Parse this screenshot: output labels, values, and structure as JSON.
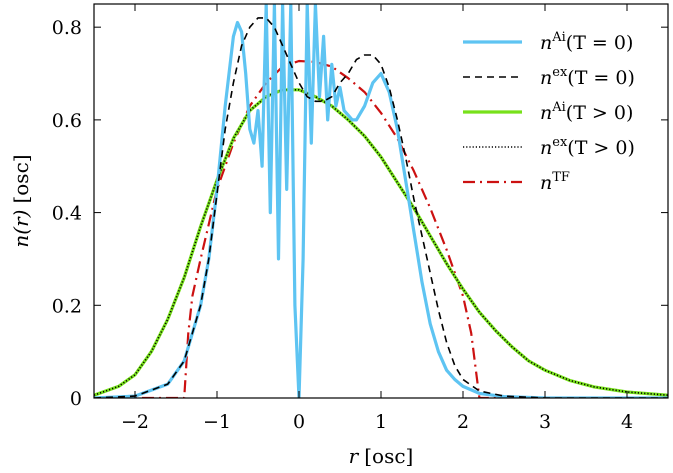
{
  "chart_data": {
    "type": "line",
    "title": "",
    "xlabel_var": "r",
    "xlabel_unit": "[osc]",
    "ylabel_var": "n(r)",
    "ylabel_unit": "[osc]",
    "xlim": [
      -2.5,
      4.5
    ],
    "ylim": [
      0,
      0.85
    ],
    "xticks": [
      -2,
      -1,
      0,
      1,
      2,
      3,
      4
    ],
    "xtick_labels": [
      "−2",
      "−1",
      "0",
      "1",
      "2",
      "3",
      "4"
    ],
    "yticks": [
      0,
      0.2,
      0.4,
      0.6,
      0.8
    ],
    "ytick_labels": [
      "0",
      "0.2",
      "0.4",
      "0.6",
      "0.8"
    ],
    "legend_position": "top-right",
    "series": [
      {
        "id": "ai_t0",
        "name": "n^Ai(T = 0)",
        "legend_base": "n",
        "legend_sup": "Ai",
        "legend_arg": "(T = 0)",
        "color": "#5ec4f2",
        "style": "solid",
        "x": [
          -2.5,
          -2.0,
          -1.6,
          -1.4,
          -1.2,
          -1.1,
          -1.0,
          -0.9,
          -0.8,
          -0.75,
          -0.7,
          -0.65,
          -0.6,
          -0.55,
          -0.5,
          -0.45,
          -0.4,
          -0.35,
          -0.3,
          -0.25,
          -0.2,
          -0.15,
          -0.1,
          -0.05,
          0.0,
          0.05,
          0.1,
          0.15,
          0.2,
          0.25,
          0.3,
          0.35,
          0.4,
          0.45,
          0.5,
          0.55,
          0.6,
          0.65,
          0.7,
          0.8,
          0.9,
          1.0,
          1.1,
          1.2,
          1.3,
          1.4,
          1.5,
          1.6,
          1.7,
          1.8,
          1.9,
          2.0,
          2.2,
          2.5,
          3.0,
          3.5,
          4.0,
          4.5
        ],
        "values": [
          0.0,
          0.004,
          0.03,
          0.08,
          0.2,
          0.3,
          0.45,
          0.63,
          0.78,
          0.81,
          0.79,
          0.7,
          0.58,
          0.55,
          0.62,
          0.5,
          0.85,
          0.4,
          0.85,
          0.3,
          0.85,
          0.45,
          0.85,
          0.2,
          0.0,
          0.3,
          0.85,
          0.55,
          0.85,
          0.65,
          0.78,
          0.6,
          0.72,
          0.63,
          0.67,
          0.62,
          0.61,
          0.6,
          0.6,
          0.63,
          0.68,
          0.7,
          0.66,
          0.58,
          0.47,
          0.36,
          0.25,
          0.16,
          0.1,
          0.06,
          0.04,
          0.025,
          0.01,
          0.003,
          0.0,
          0.0,
          0.0,
          0.0
        ]
      },
      {
        "id": "ex_t0",
        "name": "n^ex(T = 0)",
        "legend_base": "n",
        "legend_sup": "ex",
        "legend_arg": "(T = 0)",
        "color": "#000000",
        "style": "dashed",
        "x": [
          -2.5,
          -2.0,
          -1.6,
          -1.4,
          -1.2,
          -1.1,
          -1.0,
          -0.9,
          -0.8,
          -0.7,
          -0.6,
          -0.5,
          -0.4,
          -0.3,
          -0.2,
          -0.1,
          0.0,
          0.1,
          0.2,
          0.3,
          0.4,
          0.5,
          0.6,
          0.7,
          0.8,
          0.9,
          1.0,
          1.1,
          1.2,
          1.3,
          1.4,
          1.5,
          1.6,
          1.7,
          1.8,
          1.9,
          2.0,
          2.2,
          2.5,
          3.0,
          3.5,
          4.0,
          4.5
        ],
        "values": [
          0.0,
          0.004,
          0.03,
          0.08,
          0.2,
          0.3,
          0.44,
          0.58,
          0.68,
          0.76,
          0.8,
          0.82,
          0.82,
          0.8,
          0.76,
          0.72,
          0.68,
          0.65,
          0.64,
          0.64,
          0.65,
          0.68,
          0.7,
          0.73,
          0.74,
          0.74,
          0.72,
          0.67,
          0.6,
          0.52,
          0.43,
          0.35,
          0.27,
          0.19,
          0.12,
          0.07,
          0.04,
          0.015,
          0.004,
          0.0,
          0.0,
          0.0,
          0.0
        ]
      },
      {
        "id": "ai_tpos",
        "name": "n^Ai(T > 0)",
        "legend_base": "n",
        "legend_sup": "Ai",
        "legend_arg": "(T > 0)",
        "color": "#77e11a",
        "style": "solid",
        "x": [
          -2.5,
          -2.2,
          -2.0,
          -1.8,
          -1.6,
          -1.4,
          -1.2,
          -1.0,
          -0.8,
          -0.6,
          -0.4,
          -0.2,
          0.0,
          0.2,
          0.4,
          0.6,
          0.8,
          1.0,
          1.2,
          1.4,
          1.6,
          1.8,
          2.0,
          2.2,
          2.4,
          2.6,
          2.8,
          3.0,
          3.3,
          3.6,
          4.0,
          4.5
        ],
        "values": [
          0.006,
          0.025,
          0.05,
          0.1,
          0.17,
          0.26,
          0.37,
          0.47,
          0.56,
          0.62,
          0.65,
          0.665,
          0.665,
          0.65,
          0.63,
          0.6,
          0.565,
          0.52,
          0.465,
          0.41,
          0.35,
          0.29,
          0.235,
          0.185,
          0.145,
          0.11,
          0.08,
          0.06,
          0.038,
          0.024,
          0.013,
          0.006
        ]
      },
      {
        "id": "ex_tpos",
        "name": "n^ex(T > 0)",
        "legend_base": "n",
        "legend_sup": "ex",
        "legend_arg": "(T > 0)",
        "color": "#000000",
        "style": "dotted",
        "x": [
          -2.5,
          -2.2,
          -2.0,
          -1.8,
          -1.6,
          -1.4,
          -1.2,
          -1.0,
          -0.8,
          -0.6,
          -0.4,
          -0.2,
          0.0,
          0.2,
          0.4,
          0.6,
          0.8,
          1.0,
          1.2,
          1.4,
          1.6,
          1.8,
          2.0,
          2.2,
          2.4,
          2.6,
          2.8,
          3.0,
          3.3,
          3.6,
          4.0,
          4.5
        ],
        "values": [
          0.006,
          0.025,
          0.05,
          0.1,
          0.17,
          0.26,
          0.37,
          0.47,
          0.56,
          0.62,
          0.65,
          0.665,
          0.665,
          0.65,
          0.63,
          0.6,
          0.565,
          0.52,
          0.465,
          0.41,
          0.35,
          0.29,
          0.235,
          0.185,
          0.145,
          0.11,
          0.08,
          0.06,
          0.038,
          0.024,
          0.013,
          0.006
        ]
      },
      {
        "id": "tf",
        "name": "n^TF",
        "legend_base": "n",
        "legend_sup": "TF",
        "legend_arg": "",
        "color": "#cc1111",
        "style": "dashdot",
        "x": [
          -2.5,
          -1.4,
          -1.35,
          -1.3,
          -1.2,
          -1.0,
          -0.8,
          -0.6,
          -0.4,
          -0.2,
          0.0,
          0.2,
          0.4,
          0.6,
          0.8,
          1.0,
          1.2,
          1.4,
          1.6,
          1.8,
          2.0,
          2.1,
          2.15,
          2.2,
          3.0,
          4.5
        ],
        "values": [
          0.0,
          0.0,
          0.14,
          0.22,
          0.3,
          0.45,
          0.55,
          0.63,
          0.68,
          0.715,
          0.727,
          0.725,
          0.715,
          0.69,
          0.66,
          0.615,
          0.56,
          0.49,
          0.41,
          0.32,
          0.22,
          0.14,
          0.07,
          0.0,
          0.0,
          0.0
        ]
      }
    ]
  }
}
